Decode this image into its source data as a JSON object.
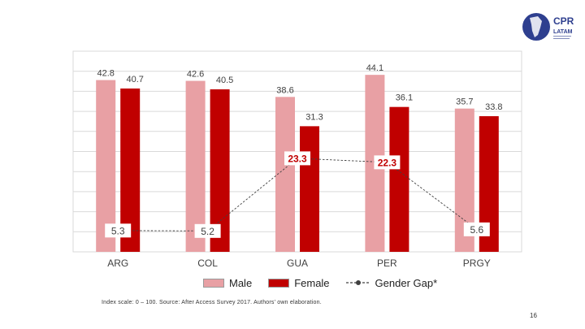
{
  "logo": {
    "line1": "CPR",
    "line2": "LATAM"
  },
  "chart_data": {
    "type": "bar",
    "categories": [
      "ARG",
      "COL",
      "GUA",
      "PER",
      "PRGY"
    ],
    "series": [
      {
        "name": "Male",
        "type": "bar",
        "color": "#e8a0a4",
        "values": [
          42.8,
          42.6,
          38.6,
          44.1,
          35.7
        ]
      },
      {
        "name": "Female",
        "type": "bar",
        "color": "#c00000",
        "values": [
          40.7,
          40.5,
          31.3,
          36.1,
          33.8
        ]
      },
      {
        "name": "Gender Gap*",
        "type": "line",
        "style": "dashed",
        "color": "#404040",
        "values": [
          5.3,
          5.2,
          23.3,
          22.3,
          5.6
        ]
      }
    ],
    "ylim": [
      0,
      50
    ],
    "grid": true,
    "legend_position": "bottom",
    "highlight_color": "#c00000",
    "gap_labels": [
      "5.3",
      "5.2",
      "23.3",
      "22.3",
      "5.6"
    ],
    "gap_highlight": [
      false,
      false,
      true,
      true,
      false
    ]
  },
  "legend": {
    "male": "Male",
    "female": "Female",
    "gap": "Gender Gap*"
  },
  "footer": {
    "source": "Index scale: 0 – 100. Source: After Access Survey 2017. Authors' own elaboration.",
    "page": "16"
  }
}
